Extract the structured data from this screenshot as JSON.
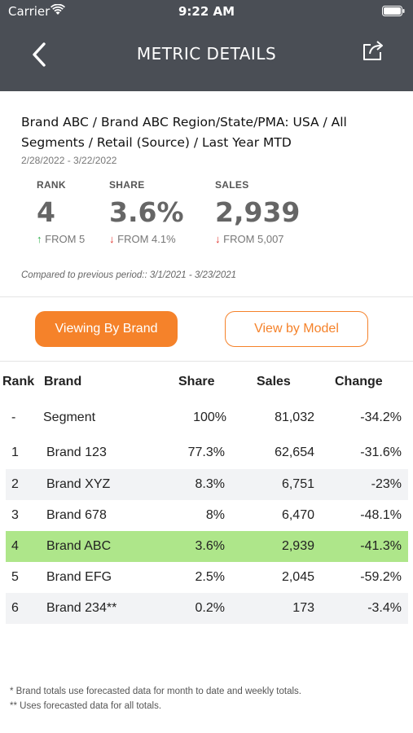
{
  "status_bar": {
    "carrier": "Carrier",
    "time": "9:22 AM"
  },
  "nav": {
    "title": "METRIC DETAILS"
  },
  "summary": {
    "breadcrumb": "Brand ABC / Brand ABC Region/State/PMA: USA / All Segments / Retail (Source) / Last Year MTD",
    "date_range": "2/28/2022 - 3/22/2022",
    "metrics": [
      {
        "label": "RANK",
        "value": "4",
        "direction": "up",
        "delta": "FROM 5"
      },
      {
        "label": "SHARE",
        "value": "3.6%",
        "direction": "down",
        "delta": "FROM 4.1%"
      },
      {
        "label": "SALES",
        "value": "2,939",
        "direction": "down",
        "delta": "FROM 5,007"
      }
    ],
    "compared_text": "Compared to previous period:: 3/1/2021 - 3/23/2021"
  },
  "toggle": {
    "active_label": "Viewing By Brand",
    "inactive_label": "View by Model"
  },
  "table": {
    "headers": [
      "Rank",
      "Brand",
      "Share",
      "Sales",
      "Change"
    ],
    "rows": [
      {
        "rank": "-",
        "brand": "Segment",
        "share": "100%",
        "sales": "81,032",
        "change": "-34.2%"
      },
      {
        "rank": "1",
        "brand": "Brand 123",
        "share": "77.3%",
        "sales": "62,654",
        "change": "-31.6%"
      },
      {
        "rank": "2",
        "brand": "Brand XYZ",
        "share": "8.3%",
        "sales": "6,751",
        "change": "-23%"
      },
      {
        "rank": "3",
        "brand": "Brand 678",
        "share": "8%",
        "sales": "6,470",
        "change": "-48.1%"
      },
      {
        "rank": "4",
        "brand": "Brand ABC",
        "share": "3.6%",
        "sales": "2,939",
        "change": "-41.3%"
      },
      {
        "rank": "5",
        "brand": "Brand EFG",
        "share": "2.5%",
        "sales": "2,045",
        "change": "-59.2%"
      },
      {
        "rank": "6",
        "brand": "Brand 234**",
        "share": "0.2%",
        "sales": "173",
        "change": "-3.4%"
      }
    ],
    "highlight_color": "#aee68a",
    "stripe_color": "#f2f3f5"
  },
  "footnotes": [
    "* Brand totals use forecasted data for month to date and weekly totals.",
    "** Uses forecasted data for all totals."
  ],
  "colors": {
    "header_bg": "#4a4e55",
    "accent": "#f5822a",
    "up": "#2eb04a",
    "down": "#e0322b"
  },
  "icons": {
    "back": "chevron-left-icon",
    "share": "share-icon",
    "wifi": "wifi-icon",
    "battery": "battery-icon"
  }
}
